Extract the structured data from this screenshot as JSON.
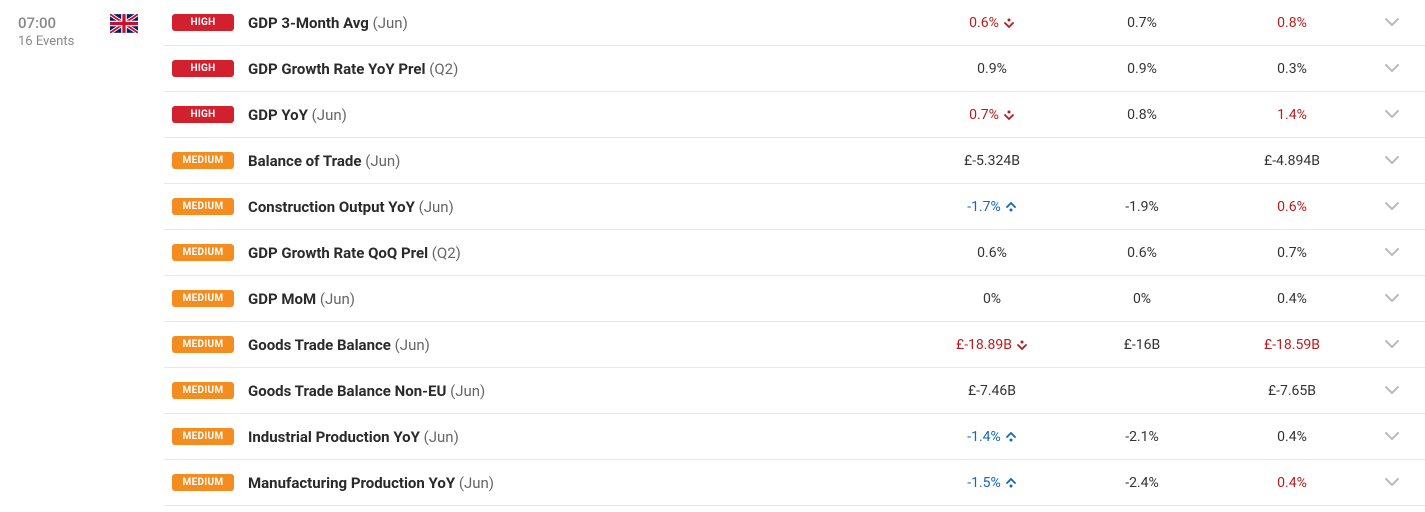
{
  "time": "07:00",
  "events_count": "16 Events",
  "country": "UK",
  "colors": {
    "badge_high": "#d3202f",
    "badge_medium": "#f58c1f",
    "text_red": "#b71c1c",
    "text_blue": "#1565c0",
    "text_default": "#333333",
    "border": "#e8e8e8"
  },
  "events": [
    {
      "importance": "HIGH",
      "name": "GDP 3-Month Avg",
      "period": "(Jun)",
      "actual": "0.6%",
      "actual_style": "red",
      "actual_arrow": "down-red",
      "forecast": "0.7%",
      "previous": "0.8%",
      "previous_style": "red"
    },
    {
      "importance": "HIGH",
      "name": "GDP Growth Rate YoY Prel",
      "period": "(Q2)",
      "actual": "0.9%",
      "actual_style": "",
      "actual_arrow": "",
      "forecast": "0.9%",
      "previous": "0.3%",
      "previous_style": ""
    },
    {
      "importance": "HIGH",
      "name": "GDP YoY",
      "period": "(Jun)",
      "actual": "0.7%",
      "actual_style": "red",
      "actual_arrow": "down-red",
      "forecast": "0.8%",
      "previous": "1.4%",
      "previous_style": "red"
    },
    {
      "importance": "MEDIUM",
      "name": "Balance of Trade",
      "period": "(Jun)",
      "actual": "£-5.324B",
      "actual_style": "",
      "actual_arrow": "",
      "forecast": "",
      "previous": "£-4.894B",
      "previous_style": ""
    },
    {
      "importance": "MEDIUM",
      "name": "Construction Output YoY",
      "period": "(Jun)",
      "actual": "-1.7%",
      "actual_style": "blue",
      "actual_arrow": "up-blue",
      "forecast": "-1.9%",
      "previous": "0.6%",
      "previous_style": "red"
    },
    {
      "importance": "MEDIUM",
      "name": "GDP Growth Rate QoQ Prel",
      "period": "(Q2)",
      "actual": "0.6%",
      "actual_style": "",
      "actual_arrow": "",
      "forecast": "0.6%",
      "previous": "0.7%",
      "previous_style": ""
    },
    {
      "importance": "MEDIUM",
      "name": "GDP MoM",
      "period": "(Jun)",
      "actual": "0%",
      "actual_style": "",
      "actual_arrow": "",
      "forecast": "0%",
      "previous": "0.4%",
      "previous_style": ""
    },
    {
      "importance": "MEDIUM",
      "name": "Goods Trade Balance",
      "period": "(Jun)",
      "actual": "£-18.89B",
      "actual_style": "red",
      "actual_arrow": "down-red",
      "forecast": "£-16B",
      "previous": "£-18.59B",
      "previous_style": "red"
    },
    {
      "importance": "MEDIUM",
      "name": "Goods Trade Balance Non-EU",
      "period": "(Jun)",
      "actual": "£-7.46B",
      "actual_style": "",
      "actual_arrow": "",
      "forecast": "",
      "previous": "£-7.65B",
      "previous_style": ""
    },
    {
      "importance": "MEDIUM",
      "name": "Industrial Production YoY",
      "period": "(Jun)",
      "actual": "-1.4%",
      "actual_style": "blue",
      "actual_arrow": "up-blue",
      "forecast": "-2.1%",
      "previous": "0.4%",
      "previous_style": ""
    },
    {
      "importance": "MEDIUM",
      "name": "Manufacturing Production YoY",
      "period": "(Jun)",
      "actual": "-1.5%",
      "actual_style": "blue",
      "actual_arrow": "up-blue",
      "forecast": "-2.4%",
      "previous": "0.4%",
      "previous_style": "red"
    }
  ]
}
